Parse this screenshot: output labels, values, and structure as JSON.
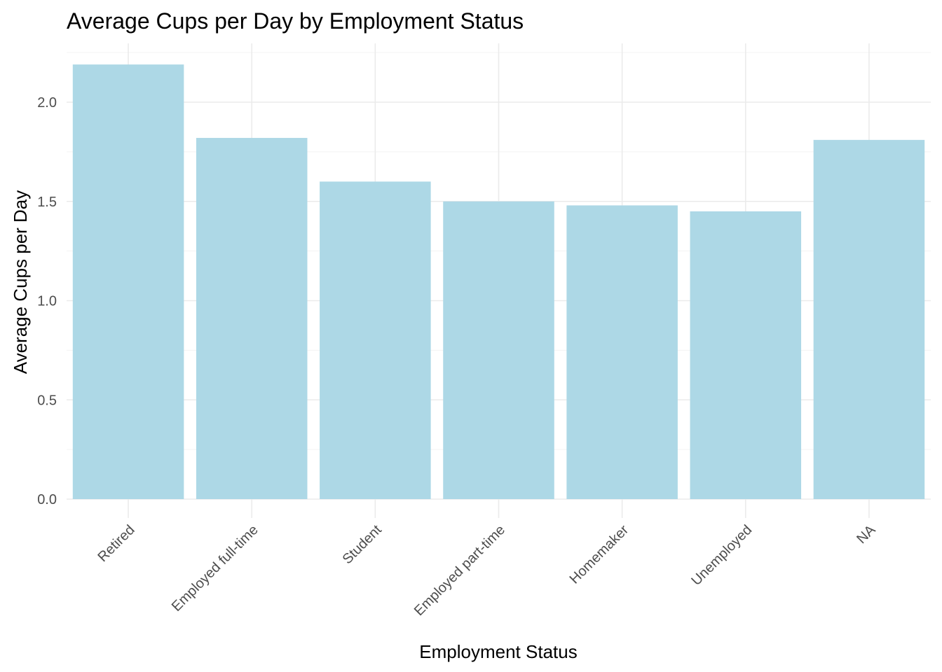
{
  "chart_data": {
    "type": "bar",
    "title": "Average Cups per Day by Employment Status",
    "xlabel": "Employment Status",
    "ylabel": "Average Cups per Day",
    "categories": [
      "Retired",
      "Employed full-time",
      "Student",
      "Employed part-time",
      "Homemaker",
      "Unemployed",
      "NA"
    ],
    "values": [
      2.19,
      1.82,
      1.6,
      1.5,
      1.48,
      1.45,
      1.81
    ],
    "ylim": [
      0,
      2.3
    ],
    "yticks": [
      0.0,
      0.5,
      1.0,
      1.5,
      2.0
    ],
    "ytick_labels": [
      "0.0",
      "0.5",
      "1.0",
      "1.5",
      "2.0"
    ],
    "bar_color": "#add8e6",
    "grid": true,
    "legend": "none"
  }
}
